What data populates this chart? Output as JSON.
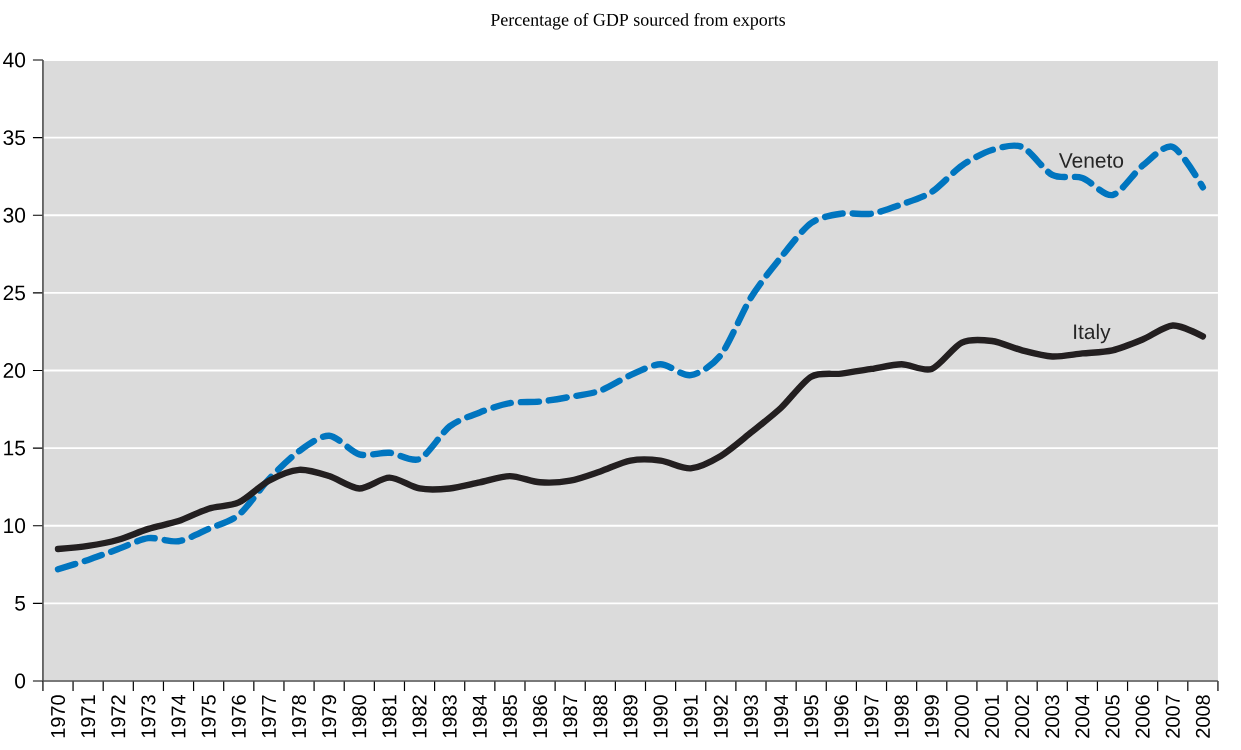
{
  "chart_data": {
    "type": "line",
    "title": "Percentage of GDP sourced from exports",
    "categories": [
      "1970",
      "1971",
      "1972",
      "1973",
      "1974",
      "1975",
      "1976",
      "1977",
      "1978",
      "1979",
      "1980",
      "1981",
      "1982",
      "1983",
      "1984",
      "1985",
      "1986",
      "1987",
      "1988",
      "1989",
      "1990",
      "1991",
      "1992",
      "1993",
      "1994",
      "1995",
      "1996",
      "1997",
      "1998",
      "1999",
      "2000",
      "2001",
      "2002",
      "2003",
      "2004",
      "2005",
      "2006",
      "2007",
      "2008"
    ],
    "series": [
      {
        "name": "Veneto",
        "color": "#0075bf",
        "line_style": "dashed",
        "values": [
          7.2,
          7.8,
          8.5,
          9.2,
          9.0,
          9.8,
          10.7,
          13.0,
          14.8,
          15.8,
          14.6,
          14.7,
          14.3,
          16.4,
          17.3,
          17.9,
          18.0,
          18.3,
          18.7,
          19.7,
          20.4,
          19.7,
          21.0,
          24.7,
          27.3,
          29.5,
          30.1,
          30.1,
          30.7,
          31.5,
          33.2,
          34.2,
          34.4,
          32.6,
          32.4,
          31.3,
          33.2,
          34.4,
          31.8
        ]
      },
      {
        "name": "Italy",
        "color": "#231f20",
        "line_style": "solid",
        "values": [
          8.5,
          8.7,
          9.1,
          9.8,
          10.3,
          11.1,
          11.5,
          12.9,
          13.6,
          13.2,
          12.4,
          13.1,
          12.4,
          12.4,
          12.8,
          13.2,
          12.8,
          12.9,
          13.5,
          14.2,
          14.2,
          13.7,
          14.5,
          16.0,
          17.6,
          19.6,
          19.8,
          20.1,
          20.4,
          20.1,
          21.8,
          21.9,
          21.3,
          20.9,
          21.1,
          21.3,
          22.0,
          22.9,
          22.2
        ]
      }
    ],
    "ylim": [
      0,
      40
    ],
    "yticks": [
      0,
      5,
      10,
      15,
      20,
      25,
      30,
      35,
      40
    ],
    "grid": "y",
    "legend": false,
    "marker": "none"
  }
}
